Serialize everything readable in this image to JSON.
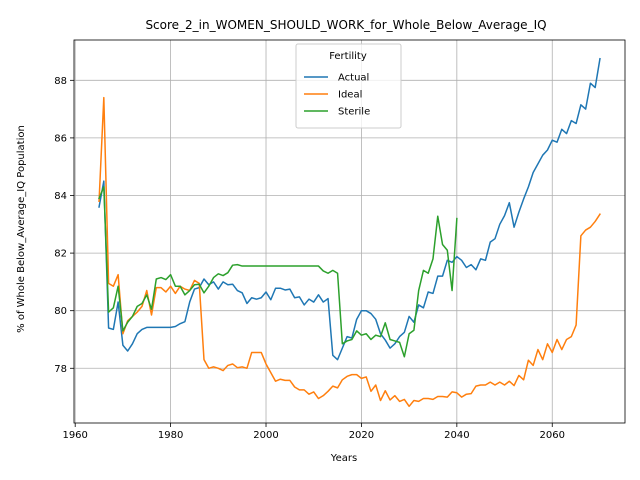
{
  "chart_data": {
    "type": "line",
    "title": "Score_2_in_WOMEN_SHOULD_WORK_for_Whole_Below_Average_IQ",
    "xlabel": "Years",
    "ylabel": "% of Whole Below_Average_IQ Population",
    "xlim": [
      1959.75,
      2075.25
    ],
    "ylim": [
      76.1,
      89.4
    ],
    "xticks": [
      1960,
      1980,
      2000,
      2020,
      2040,
      2060
    ],
    "yticks": [
      78,
      80,
      82,
      84,
      86,
      88
    ],
    "grid": true,
    "legend": {
      "title": "Fertility",
      "placement": "top-center"
    },
    "series": [
      {
        "name": "Actual",
        "color": "#1f77b4",
        "x": [
          1965,
          1966,
          1967,
          1968,
          1969,
          1970,
          1971,
          1972,
          1973,
          1974,
          1975,
          1976,
          1977,
          1978,
          1979,
          1980,
          1981,
          1982,
          1983,
          1984,
          1985,
          1986,
          1987,
          1988,
          1989,
          1990,
          1991,
          1992,
          1993,
          1994,
          1995,
          1996,
          1997,
          1998,
          1999,
          2000,
          2001,
          2002,
          2003,
          2004,
          2005,
          2006,
          2007,
          2008,
          2009,
          2010,
          2011,
          2012,
          2013,
          2014,
          2015,
          2016,
          2017,
          2018,
          2019,
          2020,
          2021,
          2022,
          2023,
          2024,
          2025,
          2026,
          2027,
          2028,
          2029,
          2030,
          2031,
          2032,
          2033,
          2034,
          2035,
          2036,
          2037,
          2038,
          2039,
          2040,
          2041,
          2042,
          2043,
          2044,
          2045,
          2046,
          2047,
          2048,
          2049,
          2050,
          2051,
          2052,
          2053,
          2054,
          2055,
          2056,
          2057,
          2058,
          2059,
          2060,
          2061,
          2062,
          2063,
          2064,
          2065,
          2066,
          2067,
          2068,
          2069,
          2070
        ],
        "y": [
          83.6,
          84.5,
          79.4,
          79.35,
          80.3,
          78.8,
          78.6,
          78.85,
          79.2,
          79.35,
          79.42,
          79.42,
          79.42,
          79.42,
          79.42,
          79.42,
          79.45,
          79.55,
          79.62,
          80.3,
          80.75,
          80.8,
          81.1,
          80.9,
          81.0,
          80.75,
          81.0,
          80.9,
          80.92,
          80.7,
          80.62,
          80.25,
          80.45,
          80.4,
          80.45,
          80.65,
          80.38,
          80.78,
          80.78,
          80.72,
          80.75,
          80.45,
          80.48,
          80.2,
          80.4,
          80.3,
          80.55,
          80.3,
          80.42,
          78.45,
          78.3,
          78.7,
          79.1,
          79.05,
          79.7,
          80.0,
          80.0,
          79.9,
          79.7,
          79.2,
          78.98,
          78.7,
          78.85,
          79.1,
          79.25,
          79.8,
          79.6,
          80.2,
          80.1,
          80.65,
          80.6,
          81.2,
          81.2,
          81.75,
          81.68,
          81.88,
          81.75,
          81.5,
          81.6,
          81.42,
          81.8,
          81.75,
          82.38,
          82.5,
          83.0,
          83.3,
          83.75,
          82.9,
          83.42,
          83.88,
          84.3,
          84.8,
          85.1,
          85.4,
          85.58,
          85.92,
          85.85,
          86.3,
          86.15,
          86.6,
          86.5,
          87.15,
          87.0,
          87.9,
          87.75,
          88.75
        ]
      },
      {
        "name": "Ideal",
        "color": "#ff7f0e",
        "x": [
          1965,
          1966,
          1967,
          1968,
          1969,
          1970,
          1971,
          1972,
          1973,
          1974,
          1975,
          1976,
          1977,
          1978,
          1979,
          1980,
          1981,
          1982,
          1983,
          1984,
          1985,
          1986,
          1987,
          1988,
          1989,
          1990,
          1991,
          1992,
          1993,
          1994,
          1995,
          1996,
          1997,
          1998,
          1999,
          2000,
          2001,
          2002,
          2003,
          2004,
          2005,
          2006,
          2007,
          2008,
          2009,
          2010,
          2011,
          2012,
          2013,
          2014,
          2015,
          2016,
          2017,
          2018,
          2019,
          2020,
          2021,
          2022,
          2023,
          2024,
          2025,
          2026,
          2027,
          2028,
          2029,
          2030,
          2031,
          2032,
          2033,
          2034,
          2035,
          2036,
          2037,
          2038,
          2039,
          2040,
          2041,
          2042,
          2043,
          2044,
          2045,
          2046,
          2047,
          2048,
          2049,
          2050,
          2051,
          2052,
          2053,
          2054,
          2055,
          2056,
          2057,
          2058,
          2059,
          2060,
          2061,
          2062,
          2063,
          2064,
          2065,
          2066,
          2067,
          2068,
          2069,
          2070
        ],
        "y": [
          83.8,
          87.4,
          80.95,
          80.85,
          81.25,
          79.2,
          79.65,
          79.8,
          79.95,
          80.15,
          80.7,
          79.85,
          80.8,
          80.8,
          80.65,
          80.85,
          80.6,
          80.85,
          80.75,
          80.7,
          81.05,
          80.95,
          78.3,
          78.0,
          78.05,
          78.0,
          77.92,
          78.1,
          78.15,
          78.02,
          78.05,
          78.0,
          78.55,
          78.55,
          78.55,
          78.15,
          77.85,
          77.55,
          77.62,
          77.58,
          77.58,
          77.35,
          77.25,
          77.25,
          77.1,
          77.18,
          76.95,
          77.05,
          77.2,
          77.38,
          77.32,
          77.6,
          77.72,
          77.78,
          77.78,
          77.65,
          77.7,
          77.2,
          77.42,
          76.88,
          77.22,
          76.9,
          77.05,
          76.85,
          76.92,
          76.68,
          76.88,
          76.85,
          76.95,
          76.95,
          76.92,
          77.02,
          77.02,
          77.0,
          77.18,
          77.15,
          77.0,
          77.1,
          77.12,
          77.38,
          77.42,
          77.42,
          77.52,
          77.42,
          77.52,
          77.42,
          77.55,
          77.4,
          77.75,
          77.6,
          78.28,
          78.1,
          78.65,
          78.3,
          78.85,
          78.55,
          79.0,
          78.65,
          79.0,
          79.1,
          79.5,
          82.6,
          82.8,
          82.9,
          83.1,
          83.35
        ]
      },
      {
        "name": "Sterile",
        "color": "#2ca02c",
        "x": [
          1965,
          1966,
          1967,
          1968,
          1969,
          1970,
          1971,
          1972,
          1973,
          1974,
          1975,
          1976,
          1977,
          1978,
          1979,
          1980,
          1981,
          1982,
          1983,
          1984,
          1985,
          1986,
          1987,
          1988,
          1989,
          1990,
          1991,
          1992,
          1993,
          1994,
          1995,
          1996,
          1997,
          1998,
          1999,
          2000,
          2001,
          2002,
          2003,
          2004,
          2005,
          2006,
          2007,
          2008,
          2009,
          2010,
          2011,
          2012,
          2013,
          2014,
          2015,
          2016,
          2017,
          2018,
          2019,
          2020,
          2021,
          2022,
          2023,
          2024,
          2025,
          2026,
          2027,
          2028,
          2029,
          2030,
          2031,
          2032,
          2033,
          2034,
          2035,
          2036,
          2037,
          2038,
          2039,
          2040
        ],
        "y": [
          83.9,
          84.3,
          79.95,
          80.1,
          80.85,
          79.3,
          79.6,
          79.8,
          80.15,
          80.25,
          80.55,
          80.05,
          81.1,
          81.15,
          81.08,
          81.25,
          80.85,
          80.85,
          80.55,
          80.7,
          80.9,
          80.92,
          80.62,
          80.85,
          81.15,
          81.28,
          81.22,
          81.32,
          81.58,
          81.6,
          81.55,
          81.55,
          81.55,
          81.55,
          81.55,
          81.55,
          81.55,
          81.55,
          81.55,
          81.55,
          81.55,
          81.55,
          81.55,
          81.55,
          81.55,
          81.55,
          81.55,
          81.38,
          81.3,
          81.4,
          81.3,
          78.85,
          78.95,
          79.0,
          79.3,
          79.15,
          79.2,
          79.0,
          79.15,
          79.1,
          79.58,
          79.0,
          78.95,
          78.9,
          78.4,
          79.2,
          79.32,
          80.7,
          81.4,
          81.3,
          81.8,
          83.28,
          82.3,
          82.1,
          80.7,
          83.2
        ]
      }
    ]
  }
}
